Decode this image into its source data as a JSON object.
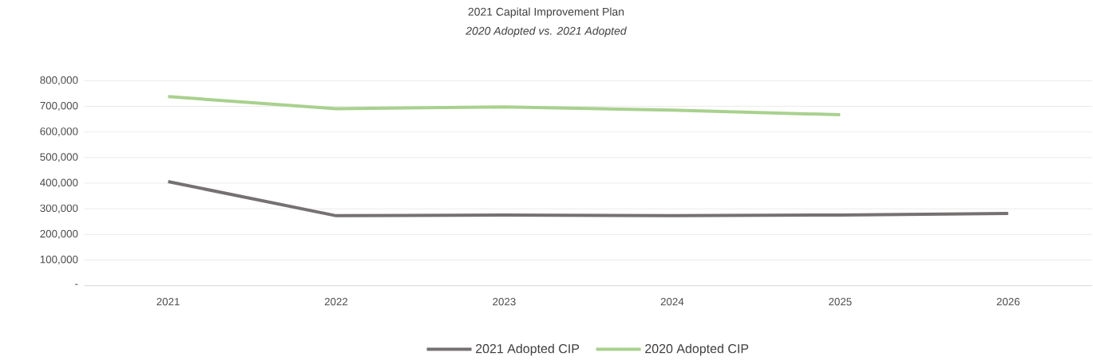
{
  "chart_data": {
    "type": "line",
    "title": "2021 Capital Improvement Plan",
    "subtitle": "2020 Adopted vs. 2021 Adopted",
    "categories": [
      "2021",
      "2022",
      "2023",
      "2024",
      "2025",
      "2026"
    ],
    "series": [
      {
        "name": "2021 Adopted CIP",
        "color": "#767171",
        "values": [
          406000,
          273000,
          276000,
          273000,
          276000,
          282000
        ]
      },
      {
        "name": "2020 Adopted CIP",
        "color": "#a9d18e",
        "values": [
          738000,
          691000,
          698000,
          685000,
          667000,
          null
        ]
      }
    ],
    "ylim": [
      0,
      800000
    ],
    "yticks": [
      {
        "value": 0,
        "label": "-"
      },
      {
        "value": 100000,
        "label": "100,000"
      },
      {
        "value": 200000,
        "label": "200,000"
      },
      {
        "value": 300000,
        "label": "300,000"
      },
      {
        "value": 400000,
        "label": "400,000"
      },
      {
        "value": 500000,
        "label": "500,000"
      },
      {
        "value": 600000,
        "label": "600,000"
      },
      {
        "value": 700000,
        "label": "700,000"
      },
      {
        "value": 800000,
        "label": "800,000"
      }
    ],
    "grid": "y",
    "legend": "bottom",
    "marker": "none",
    "line_style": "solid"
  }
}
